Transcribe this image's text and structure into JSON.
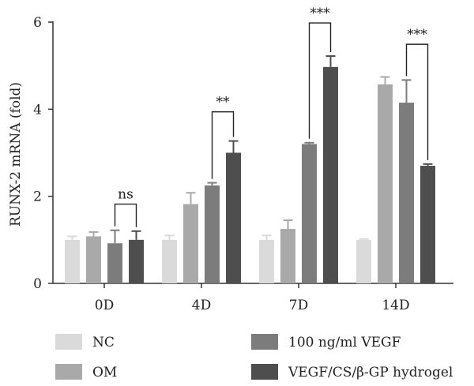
{
  "chart_data": {
    "type": "bar",
    "title": "",
    "xlabel": "",
    "ylabel": "RUNX-2 mRNA (fold)",
    "ylim": [
      0,
      6
    ],
    "yticks": [
      0,
      2,
      4,
      6
    ],
    "grid": false,
    "legend_position": "bottom",
    "categories": [
      "0D",
      "4D",
      "7D",
      "14D"
    ],
    "series": [
      {
        "name": "NC",
        "color": "#dadada",
        "values": [
          1.0,
          1.0,
          1.0,
          1.0
        ],
        "errors": [
          0.08,
          0.1,
          0.1,
          0.02
        ]
      },
      {
        "name": "OM",
        "color": "#a9a9a9",
        "values": [
          1.08,
          1.82,
          1.25,
          4.57
        ],
        "errors": [
          0.1,
          0.26,
          0.2,
          0.17
        ]
      },
      {
        "name": "100 ng/ml VEGF",
        "color": "#7c7c7c",
        "values": [
          0.92,
          2.25,
          3.2,
          4.15
        ],
        "errors": [
          0.3,
          0.06,
          0.03,
          0.52
        ]
      },
      {
        "name": "VEGF/CS/β-GP hydrogel",
        "color": "#4e4e4e",
        "values": [
          1.0,
          3.0,
          4.97,
          2.7
        ],
        "errors": [
          0.2,
          0.27,
          0.25,
          0.04
        ]
      }
    ],
    "annotations": [
      {
        "category": 0,
        "from_series": 2,
        "to_series": 3,
        "label": "ns",
        "bracket_y": 1.82
      },
      {
        "category": 1,
        "from_series": 2,
        "to_series": 3,
        "label": "**",
        "bracket_y": 3.94
      },
      {
        "category": 2,
        "from_series": 2,
        "to_series": 3,
        "label": "***",
        "bracket_y": 5.98
      },
      {
        "category": 3,
        "from_series": 2,
        "to_series": 3,
        "label": "***",
        "bracket_y": 5.49
      }
    ]
  }
}
